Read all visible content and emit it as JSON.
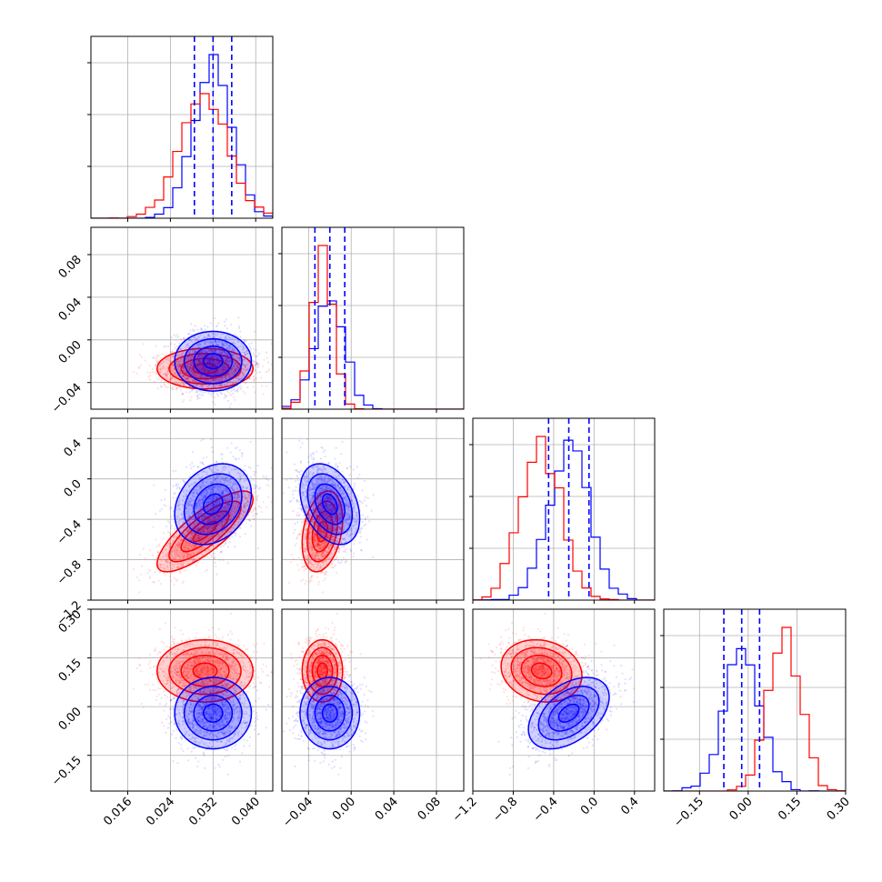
{
  "chart_data": {
    "type": "corner",
    "n_params": 4,
    "grid": true,
    "colors": {
      "series_a": "#0000ff",
      "series_b": "#ff0000",
      "axes": "#000000",
      "grid": "#b0b0b0"
    },
    "series": [
      {
        "color": "#0000ff",
        "means": [
          0.032,
          -0.02,
          -0.25,
          -0.02
        ],
        "stds": [
          0.0036,
          0.014,
          0.2,
          0.055
        ],
        "corr": [
          [
            1,
            0,
            0.25,
            0
          ],
          [
            0,
            1,
            -0.35,
            0
          ],
          [
            0.25,
            -0.35,
            1,
            0.45
          ],
          [
            0,
            0,
            0.45,
            1
          ]
        ],
        "quantiles": [
          [
            0.0285,
            0.032,
            0.0355
          ],
          [
            -0.034,
            -0.02,
            -0.006
          ],
          [
            -0.45,
            -0.25,
            -0.05
          ],
          [
            -0.075,
            -0.02,
            0.035
          ]
        ]
      },
      {
        "color": "#ff0000",
        "means": [
          0.0305,
          -0.027,
          -0.52,
          0.11
        ],
        "stds": [
          0.0045,
          0.0095,
          0.2,
          0.048
        ],
        "corr": [
          [
            1,
            0,
            0.8,
            0
          ],
          [
            0,
            1,
            0.3,
            0
          ],
          [
            0.8,
            0.3,
            1,
            -0.15
          ],
          [
            0,
            0,
            -0.15,
            1
          ]
        ]
      }
    ],
    "ranges": [
      [
        0.0091,
        0.0432
      ],
      [
        -0.065,
        0.1056
      ],
      [
        -1.2,
        0.6
      ],
      [
        -0.26,
        0.3
      ]
    ],
    "ticks": [
      [
        "0.016",
        "0.024",
        "0.032",
        "0.040"
      ],
      [
        "−0.04",
        "0.00",
        "0.04",
        "0.08"
      ],
      [
        "−1.2",
        "−0.8",
        "−0.4",
        "0.0",
        "0.4"
      ],
      [
        "−0.15",
        "0.00",
        "0.15",
        "0.30"
      ]
    ],
    "tick_values": [
      [
        0.016,
        0.024,
        0.032,
        0.04
      ],
      [
        -0.04,
        0.0,
        0.04,
        0.08
      ],
      [
        -1.2,
        -0.8,
        -0.4,
        0.0,
        0.4
      ],
      [
        -0.15,
        0.0,
        0.15,
        0.3
      ]
    ]
  }
}
